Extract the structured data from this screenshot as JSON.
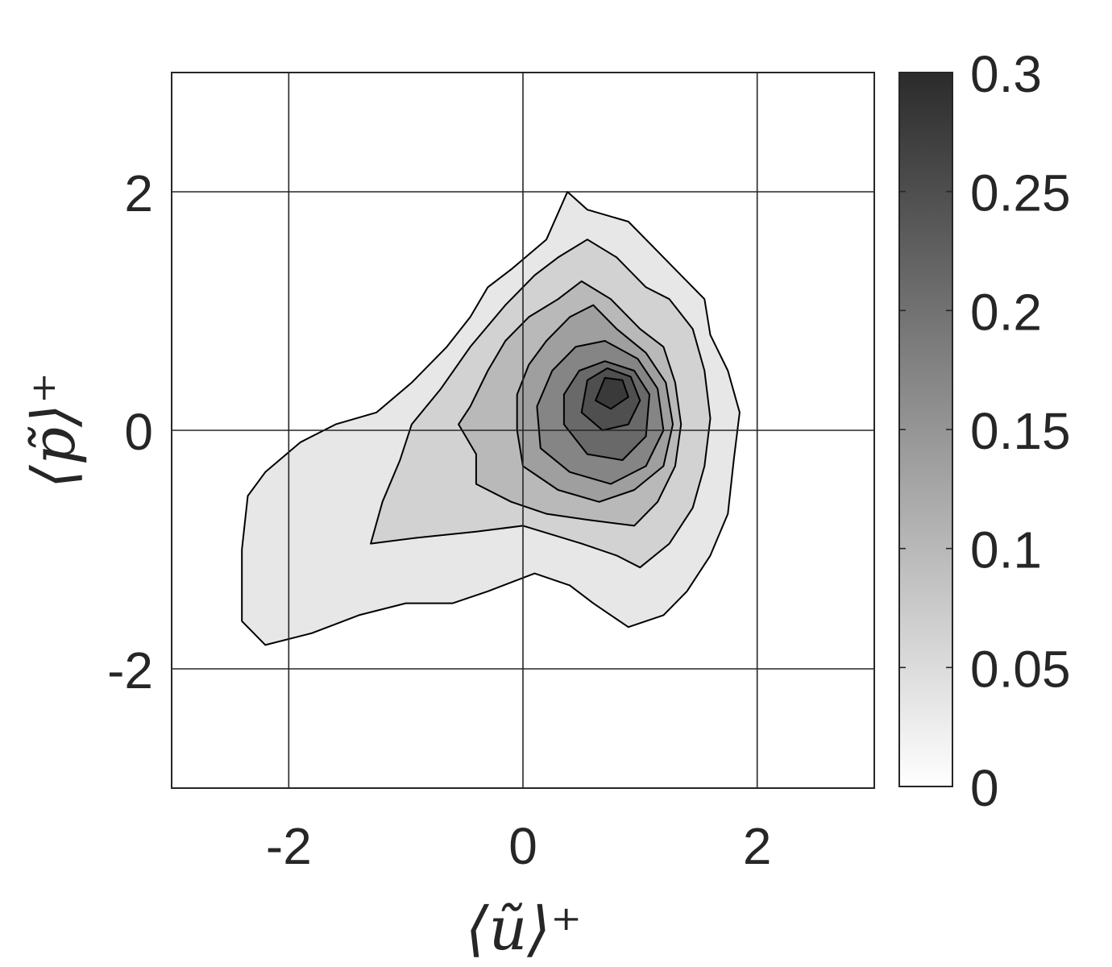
{
  "chart_data": {
    "type": "heatmap",
    "subtype": "filled-contour",
    "title": "",
    "xlabel": "⟨ũ⟩⁺",
    "ylabel": "⟨p̃⟩⁺",
    "xlim": [
      -3,
      3
    ],
    "ylim": [
      -3,
      3
    ],
    "x_ticks": [
      "-2",
      "0",
      "2"
    ],
    "x_tick_values": [
      -2,
      0,
      2
    ],
    "y_ticks": [
      "-2",
      "0",
      "2"
    ],
    "y_tick_values": [
      -2,
      0,
      2
    ],
    "grid": true,
    "colormap": "gray (reversed: white = 0, dark = max)",
    "colorbar": {
      "range": [
        0,
        0.3
      ],
      "ticks": [
        "0",
        "0.05",
        "0.1",
        "0.15",
        "0.2",
        "0.25",
        "0.3"
      ],
      "tick_values": [
        0,
        0.05,
        0.1,
        0.15,
        0.2,
        0.25,
        0.3
      ],
      "color_low": "#ffffff",
      "color_high": "#2b2b2b",
      "placement": "right"
    },
    "contour_levels": [
      0.0375,
      0.075,
      0.1125,
      0.15,
      0.1875,
      0.225,
      0.2625
    ],
    "level_fills": [
      "#e7e7e7",
      "#d2d2d2",
      "#b9b9b9",
      "#9f9f9f",
      "#858585",
      "#696969",
      "#4f4f4f",
      "#3a3a3a"
    ],
    "peak": {
      "x": 0.8,
      "y": 0.35,
      "value": 0.3
    },
    "regions": [
      {
        "level": 0.0375,
        "outline": [
          [
            -2.2,
            -1.8
          ],
          [
            -2.4,
            -1.6
          ],
          [
            -2.4,
            -1.0
          ],
          [
            -2.35,
            -0.55
          ],
          [
            -2.2,
            -0.35
          ],
          [
            -1.9,
            -0.1
          ],
          [
            -1.6,
            0.05
          ],
          [
            -1.25,
            0.15
          ],
          [
            -0.95,
            0.4
          ],
          [
            -0.65,
            0.7
          ],
          [
            -0.45,
            0.95
          ],
          [
            -0.3,
            1.2
          ],
          [
            -0.1,
            1.35
          ],
          [
            0.2,
            1.6
          ],
          [
            0.38,
            2.0
          ],
          [
            0.55,
            1.85
          ],
          [
            0.9,
            1.75
          ],
          [
            1.1,
            1.55
          ],
          [
            1.3,
            1.35
          ],
          [
            1.55,
            1.1
          ],
          [
            1.6,
            0.8
          ],
          [
            1.75,
            0.5
          ],
          [
            1.85,
            0.15
          ],
          [
            1.8,
            -0.25
          ],
          [
            1.75,
            -0.7
          ],
          [
            1.6,
            -1.05
          ],
          [
            1.4,
            -1.35
          ],
          [
            1.2,
            -1.55
          ],
          [
            0.9,
            -1.65
          ],
          [
            0.6,
            -1.45
          ],
          [
            0.4,
            -1.3
          ],
          [
            0.1,
            -1.2
          ],
          [
            -0.3,
            -1.35
          ],
          [
            -0.6,
            -1.45
          ],
          [
            -1.0,
            -1.45
          ],
          [
            -1.4,
            -1.55
          ],
          [
            -1.8,
            -1.7
          ]
        ]
      },
      {
        "level": 0.075,
        "outline": [
          [
            -1.3,
            -0.95
          ],
          [
            -0.9,
            -0.9
          ],
          [
            -0.4,
            -0.85
          ],
          [
            0.0,
            -0.8
          ],
          [
            0.5,
            -0.95
          ],
          [
            0.8,
            -1.05
          ],
          [
            1.0,
            -1.15
          ],
          [
            1.25,
            -0.95
          ],
          [
            1.45,
            -0.65
          ],
          [
            1.55,
            -0.3
          ],
          [
            1.6,
            0.1
          ],
          [
            1.55,
            0.5
          ],
          [
            1.45,
            0.85
          ],
          [
            1.25,
            1.1
          ],
          [
            1.05,
            1.2
          ],
          [
            0.8,
            1.45
          ],
          [
            0.55,
            1.6
          ],
          [
            0.3,
            1.45
          ],
          [
            0.1,
            1.3
          ],
          [
            -0.15,
            1.05
          ],
          [
            -0.45,
            0.7
          ],
          [
            -0.7,
            0.35
          ],
          [
            -0.95,
            0.05
          ],
          [
            -1.05,
            -0.25
          ],
          [
            -1.2,
            -0.6
          ]
        ]
      },
      {
        "level": 0.1125,
        "outline": [
          [
            -0.4,
            -0.45
          ],
          [
            -0.1,
            -0.6
          ],
          [
            0.2,
            -0.7
          ],
          [
            0.55,
            -0.75
          ],
          [
            0.95,
            -0.8
          ],
          [
            1.15,
            -0.6
          ],
          [
            1.3,
            -0.3
          ],
          [
            1.35,
            0.05
          ],
          [
            1.3,
            0.4
          ],
          [
            1.2,
            0.7
          ],
          [
            1.0,
            0.85
          ],
          [
            0.75,
            1.1
          ],
          [
            0.5,
            1.25
          ],
          [
            0.3,
            1.1
          ],
          [
            0.05,
            0.95
          ],
          [
            -0.15,
            0.75
          ],
          [
            -0.3,
            0.5
          ],
          [
            -0.45,
            0.2
          ],
          [
            -0.55,
            0.05
          ],
          [
            -0.4,
            -0.2
          ]
        ]
      },
      {
        "level": 0.15,
        "outline": [
          [
            0.0,
            -0.3
          ],
          [
            0.3,
            -0.5
          ],
          [
            0.65,
            -0.6
          ],
          [
            0.95,
            -0.5
          ],
          [
            1.2,
            -0.3
          ],
          [
            1.28,
            0.05
          ],
          [
            1.22,
            0.4
          ],
          [
            1.05,
            0.65
          ],
          [
            0.8,
            0.85
          ],
          [
            0.6,
            1.05
          ],
          [
            0.4,
            0.95
          ],
          [
            0.2,
            0.75
          ],
          [
            0.05,
            0.55
          ],
          [
            -0.05,
            0.3
          ],
          [
            -0.05,
            0.0
          ]
        ]
      },
      {
        "level": 0.1875,
        "outline": [
          [
            0.15,
            -0.15
          ],
          [
            0.4,
            -0.35
          ],
          [
            0.75,
            -0.45
          ],
          [
            1.05,
            -0.3
          ],
          [
            1.2,
            0.0
          ],
          [
            1.15,
            0.35
          ],
          [
            0.98,
            0.6
          ],
          [
            0.7,
            0.75
          ],
          [
            0.45,
            0.7
          ],
          [
            0.25,
            0.5
          ],
          [
            0.12,
            0.2
          ]
        ]
      },
      {
        "level": 0.225,
        "outline": [
          [
            0.35,
            0.05
          ],
          [
            0.55,
            -0.2
          ],
          [
            0.85,
            -0.25
          ],
          [
            1.05,
            -0.05
          ],
          [
            1.08,
            0.3
          ],
          [
            0.95,
            0.5
          ],
          [
            0.7,
            0.58
          ],
          [
            0.48,
            0.5
          ],
          [
            0.35,
            0.3
          ]
        ]
      },
      {
        "level": 0.2625,
        "outline": [
          [
            0.5,
            0.15
          ],
          [
            0.68,
            0.0
          ],
          [
            0.9,
            0.05
          ],
          [
            1.0,
            0.25
          ],
          [
            0.92,
            0.45
          ],
          [
            0.72,
            0.52
          ],
          [
            0.55,
            0.42
          ]
        ]
      },
      {
        "level": 0.29,
        "outline": [
          [
            0.62,
            0.25
          ],
          [
            0.75,
            0.18
          ],
          [
            0.9,
            0.28
          ],
          [
            0.85,
            0.42
          ],
          [
            0.7,
            0.44
          ]
        ]
      }
    ]
  }
}
